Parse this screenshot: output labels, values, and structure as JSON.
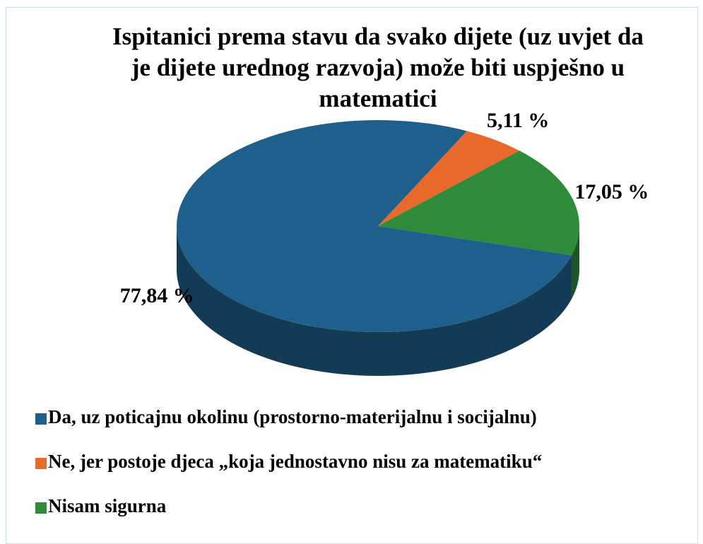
{
  "chart_data": {
    "type": "pie",
    "title": "Ispitanici prema stavu da svako dijete (uz uvjet da je dijete urednog razvoja) može biti uspješno u matematici",
    "categories": [
      "Da, uz poticajnu okolinu (prostorno-materijalnu i socijalnu)",
      "Ne, jer postoje djeca „koja jednostavno nisu za matematiku“",
      "Nisam sigurna"
    ],
    "values": [
      77.84,
      5.11,
      17.05
    ],
    "value_labels": [
      "77,84 %",
      "5,11 %",
      "17,05 %"
    ],
    "colors": [
      "#1f5f8b",
      "#e8692a",
      "#2e8b3a"
    ],
    "legend": "bottom"
  }
}
